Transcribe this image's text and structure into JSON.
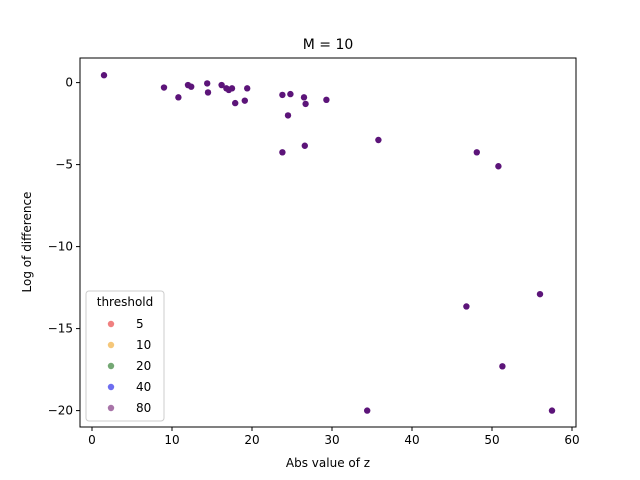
{
  "chart_data": {
    "type": "scatter",
    "title": "M = 10",
    "xlabel": "Abs value of z",
    "ylabel": "Log of difference",
    "xlim": [
      -1.5,
      60.5
    ],
    "ylim": [
      -21.0,
      1.5
    ],
    "xticks": [
      0,
      10,
      20,
      30,
      40,
      50,
      60
    ],
    "yticks": [
      0,
      -5,
      -10,
      -15,
      -20
    ],
    "grid": false,
    "legend": {
      "title": "threshold",
      "placement": "lower-left",
      "entries": [
        {
          "label": "5",
          "color": "#f08080"
        },
        {
          "label": "10",
          "color": "#f5c77a"
        },
        {
          "label": "20",
          "color": "#74a874"
        },
        {
          "label": "40",
          "color": "#6e6ef0"
        },
        {
          "label": "80",
          "color": "#a874a8"
        }
      ]
    },
    "point_color": "#5c1479",
    "points": [
      {
        "x": 1.5,
        "y": 0.45
      },
      {
        "x": 9.0,
        "y": -0.3
      },
      {
        "x": 10.8,
        "y": -0.9
      },
      {
        "x": 12.0,
        "y": -0.15
      },
      {
        "x": 12.4,
        "y": -0.25
      },
      {
        "x": 14.4,
        "y": -0.05
      },
      {
        "x": 14.5,
        "y": -0.6
      },
      {
        "x": 16.2,
        "y": -0.15
      },
      {
        "x": 16.8,
        "y": -0.35
      },
      {
        "x": 17.1,
        "y": -0.45
      },
      {
        "x": 17.5,
        "y": -0.35
      },
      {
        "x": 17.9,
        "y": -1.25
      },
      {
        "x": 19.1,
        "y": -1.1
      },
      {
        "x": 19.4,
        "y": -0.35
      },
      {
        "x": 23.8,
        "y": -0.75
      },
      {
        "x": 23.8,
        "y": -4.25
      },
      {
        "x": 24.5,
        "y": -2.0
      },
      {
        "x": 24.8,
        "y": -0.7
      },
      {
        "x": 26.5,
        "y": -0.9
      },
      {
        "x": 26.6,
        "y": -3.85
      },
      {
        "x": 26.7,
        "y": -1.3
      },
      {
        "x": 29.3,
        "y": -1.05
      },
      {
        "x": 34.4,
        "y": -20.0
      },
      {
        "x": 35.8,
        "y": -3.5
      },
      {
        "x": 46.8,
        "y": -13.65
      },
      {
        "x": 48.1,
        "y": -4.25
      },
      {
        "x": 50.8,
        "y": -5.1
      },
      {
        "x": 51.3,
        "y": -17.3
      },
      {
        "x": 56.0,
        "y": -12.9
      },
      {
        "x": 57.5,
        "y": -20.0
      }
    ]
  }
}
